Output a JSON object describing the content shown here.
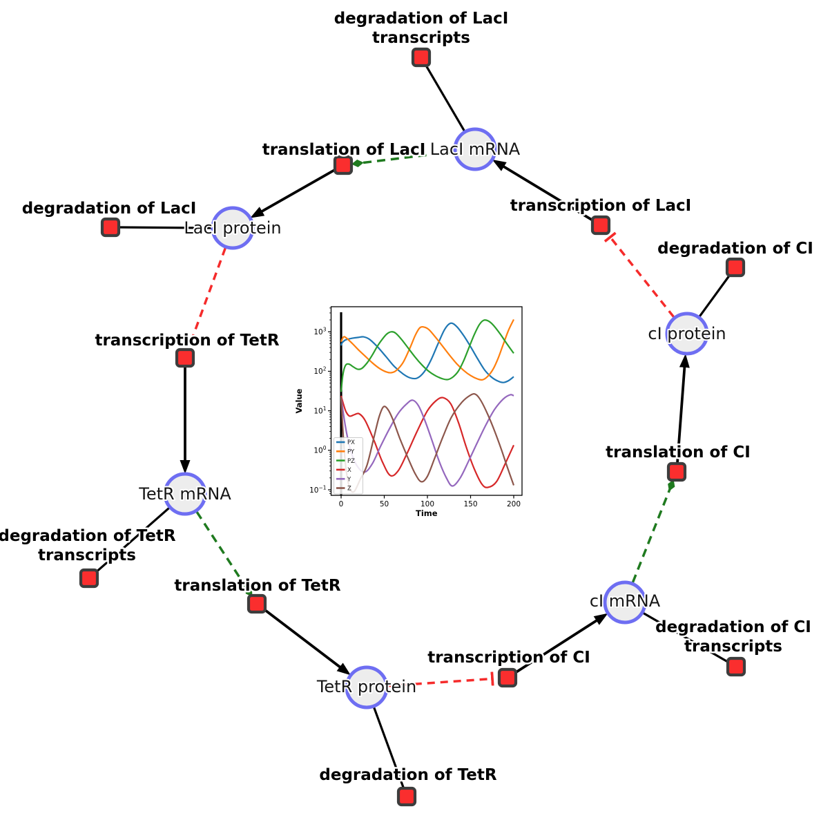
{
  "styles": {
    "species_fill": "#ededed",
    "species_border": "#6e6ef2",
    "reaction_fill": "#fa2e2e",
    "reaction_border": "#3d3d3d",
    "activation_color": "#1f7a1f",
    "inhibition_color": "#f52b2b",
    "flow_color": "#000000"
  },
  "nodes": {
    "species": {
      "laci_mrna": {
        "label": "LacI mRNA"
      },
      "laci_protein": {
        "label": "LacI protein"
      },
      "tetr_mrna": {
        "label": "TetR mRNA"
      },
      "tetr_protein": {
        "label": "TetR protein"
      },
      "ci_mrna": {
        "label": "cI mRNA"
      },
      "ci_protein": {
        "label": "cI protein"
      }
    },
    "reactions": {
      "deg_laci_transcripts": {
        "label_line1": "degradation of LacI",
        "label_line2": "transcripts"
      },
      "translation_laci": {
        "label_line1": "translation of LacI"
      },
      "deg_laci": {
        "label_line1": "degradation of LacI"
      },
      "transcription_laci": {
        "label_line1": "transcription of LacI"
      },
      "deg_ci": {
        "label_line1": "degradation of CI"
      },
      "transcription_tetr": {
        "label_line1": "transcription of TetR"
      },
      "deg_tetr_transcripts": {
        "label_line1": "degradation of TetR",
        "label_line2": "transcripts"
      },
      "translation_tetr": {
        "label_line1": "translation of TetR"
      },
      "deg_tetr": {
        "label_line1": "degradation of TetR"
      },
      "transcription_ci": {
        "label_line1": "transcription of CI"
      },
      "deg_ci_transcripts": {
        "label_line1": "degradation of CI",
        "label_line2": "transcripts"
      },
      "translation_ci": {
        "label_line1": "translation of CI"
      }
    }
  },
  "chart_data": {
    "type": "line",
    "title": "",
    "xlabel": "Time",
    "ylabel": "Value",
    "yscale": "log",
    "grid": false,
    "legend_position": "lower left",
    "xlim": [
      -11.6,
      209.6
    ],
    "ylim_log10": [
      -1.14,
      3.634
    ],
    "x_ticks": [
      0,
      50,
      100,
      150,
      200
    ],
    "y_ticks_exp": [
      -1,
      0,
      1,
      2,
      3
    ],
    "annotations": [
      {
        "type": "vline",
        "x": 0,
        "color": "#000000"
      }
    ],
    "series": [
      {
        "name": "PX",
        "color": "#1f77b4",
        "points": [
          [
            0,
            450
          ],
          [
            1,
            520
          ],
          [
            5,
            620
          ],
          [
            12,
            680
          ],
          [
            20,
            720
          ],
          [
            26,
            745
          ],
          [
            33,
            640
          ],
          [
            42,
            420
          ],
          [
            52,
            235
          ],
          [
            62,
            130
          ],
          [
            72,
            85
          ],
          [
            80,
            68
          ],
          [
            88,
            67
          ],
          [
            96,
            95
          ],
          [
            104,
            190
          ],
          [
            112,
            480
          ],
          [
            120,
            1150
          ],
          [
            127,
            1650
          ],
          [
            134,
            1350
          ],
          [
            142,
            800
          ],
          [
            150,
            420
          ],
          [
            158,
            210
          ],
          [
            166,
            110
          ],
          [
            174,
            72
          ],
          [
            182,
            56
          ],
          [
            188,
            52
          ],
          [
            194,
            58
          ],
          [
            200,
            73
          ]
        ]
      },
      {
        "name": "PY",
        "color": "#ff7f0e",
        "points": [
          [
            0,
            560
          ],
          [
            2,
            700
          ],
          [
            4,
            750
          ],
          [
            8,
            640
          ],
          [
            14,
            480
          ],
          [
            20,
            350
          ],
          [
            28,
            240
          ],
          [
            36,
            165
          ],
          [
            44,
            120
          ],
          [
            52,
            97
          ],
          [
            58,
            92
          ],
          [
            64,
            105
          ],
          [
            72,
            170
          ],
          [
            80,
            400
          ],
          [
            86,
            820
          ],
          [
            91,
            1250
          ],
          [
            96,
            1320
          ],
          [
            102,
            1120
          ],
          [
            110,
            700
          ],
          [
            118,
            420
          ],
          [
            126,
            250
          ],
          [
            134,
            155
          ],
          [
            142,
            105
          ],
          [
            150,
            78
          ],
          [
            158,
            64
          ],
          [
            164,
            61
          ],
          [
            170,
            75
          ],
          [
            176,
            112
          ],
          [
            182,
            215
          ],
          [
            188,
            490
          ],
          [
            194,
            1100
          ],
          [
            200,
            2050
          ]
        ]
      },
      {
        "name": "PZ",
        "color": "#2ca02c",
        "points": [
          [
            0,
            30
          ],
          [
            2,
            80
          ],
          [
            5,
            140
          ],
          [
            9,
            152
          ],
          [
            14,
            130
          ],
          [
            19,
            113
          ],
          [
            24,
            118
          ],
          [
            30,
            162
          ],
          [
            36,
            255
          ],
          [
            42,
            430
          ],
          [
            48,
            660
          ],
          [
            53,
            880
          ],
          [
            58,
            1000
          ],
          [
            63,
            930
          ],
          [
            70,
            640
          ],
          [
            78,
            380
          ],
          [
            86,
            225
          ],
          [
            94,
            142
          ],
          [
            102,
            98
          ],
          [
            110,
            76
          ],
          [
            118,
            64
          ],
          [
            124,
            62
          ],
          [
            130,
            73
          ],
          [
            136,
            102
          ],
          [
            142,
            185
          ],
          [
            148,
            390
          ],
          [
            154,
            820
          ],
          [
            160,
            1500
          ],
          [
            165,
            1950
          ],
          [
            170,
            1900
          ],
          [
            176,
            1500
          ],
          [
            184,
            900
          ],
          [
            192,
            500
          ],
          [
            200,
            285
          ]
        ]
      },
      {
        "name": "X",
        "color": "#d62728",
        "points": [
          [
            0,
            24
          ],
          [
            3,
            14
          ],
          [
            6,
            9.2
          ],
          [
            10,
            7.3
          ],
          [
            16,
            8.1
          ],
          [
            21,
            8.4
          ],
          [
            28,
            5.6
          ],
          [
            38,
            1.8
          ],
          [
            48,
            0.5
          ],
          [
            57,
            0.23
          ],
          [
            66,
            0.3
          ],
          [
            76,
            0.8
          ],
          [
            88,
            3
          ],
          [
            100,
            10
          ],
          [
            110,
            18
          ],
          [
            118,
            21.5
          ],
          [
            127,
            15
          ],
          [
            136,
            5
          ],
          [
            145,
            1.2
          ],
          [
            154,
            0.35
          ],
          [
            163,
            0.14
          ],
          [
            170,
            0.115
          ],
          [
            180,
            0.16
          ],
          [
            190,
            0.45
          ],
          [
            200,
            1.35
          ]
        ]
      },
      {
        "name": "Y",
        "color": "#9467bd",
        "points": [
          [
            0,
            22
          ],
          [
            5,
            4
          ],
          [
            11,
            1
          ],
          [
            18,
            0.42
          ],
          [
            27,
            0.28
          ],
          [
            36,
            0.45
          ],
          [
            46,
            1.3
          ],
          [
            56,
            3.5
          ],
          [
            66,
            8.5
          ],
          [
            76,
            15
          ],
          [
            83,
            18.5
          ],
          [
            90,
            13
          ],
          [
            98,
            5
          ],
          [
            106,
            1.6
          ],
          [
            114,
            0.5
          ],
          [
            122,
            0.2
          ],
          [
            129,
            0.125
          ],
          [
            138,
            0.2
          ],
          [
            148,
            0.55
          ],
          [
            158,
            1.6
          ],
          [
            168,
            4.5
          ],
          [
            178,
            11
          ],
          [
            188,
            20
          ],
          [
            196,
            25.5
          ],
          [
            200,
            24
          ]
        ]
      },
      {
        "name": "Z",
        "color": "#8c564b",
        "points": [
          [
            0,
            22
          ],
          [
            3,
            1.5
          ],
          [
            6,
            0.3
          ],
          [
            10,
            0.11
          ],
          [
            15,
            0.09
          ],
          [
            22,
            0.18
          ],
          [
            30,
            0.42
          ],
          [
            38,
            2.1
          ],
          [
            44,
            7
          ],
          [
            49,
            12.6
          ],
          [
            54,
            11
          ],
          [
            60,
            6
          ],
          [
            68,
            2
          ],
          [
            78,
            0.6
          ],
          [
            86,
            0.25
          ],
          [
            93,
            0.16
          ],
          [
            100,
            0.22
          ],
          [
            108,
            0.6
          ],
          [
            118,
            2.2
          ],
          [
            128,
            7
          ],
          [
            140,
            16.5
          ],
          [
            150,
            25
          ],
          [
            156,
            26
          ],
          [
            162,
            18
          ],
          [
            170,
            8
          ],
          [
            178,
            3
          ],
          [
            186,
            1
          ],
          [
            193,
            0.35
          ],
          [
            200,
            0.13
          ]
        ]
      }
    ]
  }
}
